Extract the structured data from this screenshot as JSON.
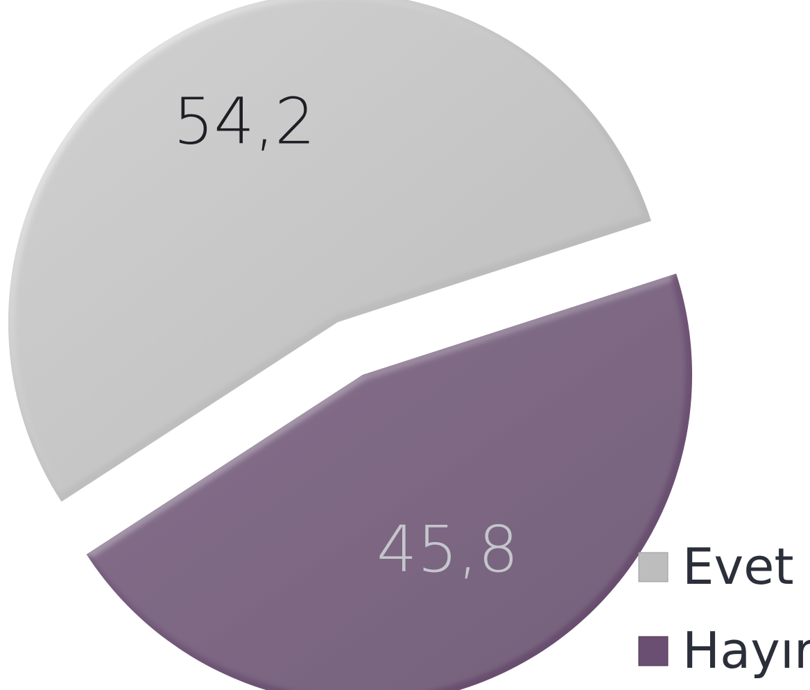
{
  "chart_data": {
    "type": "pie",
    "title": "",
    "slices": [
      {
        "label": "Evet",
        "value": 54.2,
        "value_label": "54,2",
        "color": "#bdbdbd",
        "label_color": "#1e1e24"
      },
      {
        "label": "Hayır",
        "value": 45.8,
        "value_label": "45,8",
        "color": "#6b4f72",
        "label_color": "#c4c6cc"
      }
    ],
    "legend": {
      "position": "bottom-right",
      "entries": [
        "Evet",
        "Hayır"
      ]
    },
    "style": "3d-bevel, exploded"
  }
}
